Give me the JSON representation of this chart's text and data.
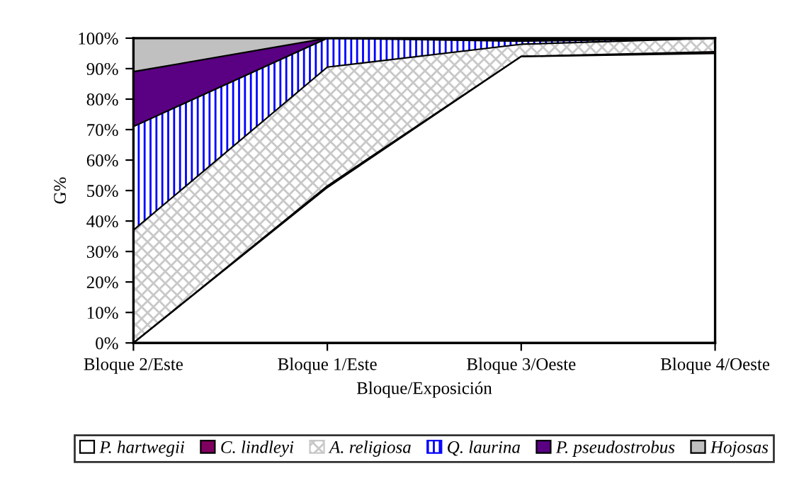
{
  "chart_data": {
    "type": "area",
    "stacked": true,
    "xlabel": "Bloque/Exposición",
    "ylabel": "G%",
    "categories": [
      "Bloque 2/Este",
      "Bloque 1/Este",
      "Bloque 3/Oeste",
      "Bloque 4/Oeste"
    ],
    "ylim": [
      0,
      100
    ],
    "yticks": [
      {
        "value": 0,
        "label": "0%"
      },
      {
        "value": 10,
        "label": "10%"
      },
      {
        "value": 20,
        "label": "20%"
      },
      {
        "value": 30,
        "label": "30%"
      },
      {
        "value": 40,
        "label": "40%"
      },
      {
        "value": 50,
        "label": "50%"
      },
      {
        "value": 60,
        "label": "60%"
      },
      {
        "value": 70,
        "label": "70%"
      },
      {
        "value": 80,
        "label": "80%"
      },
      {
        "value": 90,
        "label": "90%"
      },
      {
        "value": 100,
        "label": "100%"
      }
    ],
    "series": [
      {
        "name": "P. hartwegii",
        "color": "#ffffff",
        "values": [
          0,
          51,
          94,
          95
        ]
      },
      {
        "name": "C. lindleyi",
        "color": "#800060",
        "values": [
          0,
          0.5,
          0,
          0.5
        ]
      },
      {
        "name": "A. religiosa",
        "color": "#c8c8c8",
        "values": [
          37,
          39,
          4,
          4.5
        ]
      },
      {
        "name": "Q. laurina",
        "color": "#0000ff",
        "values": [
          34,
          9.5,
          1,
          0
        ]
      },
      {
        "name": "P. pseudostrobus",
        "color": "#5a0082",
        "values": [
          18,
          0,
          0.5,
          0
        ]
      },
      {
        "name": "Hojosas",
        "color": "#c0c0c0",
        "values": [
          11,
          0,
          0.5,
          0
        ]
      }
    ],
    "grid": false,
    "legend": "bottom"
  }
}
